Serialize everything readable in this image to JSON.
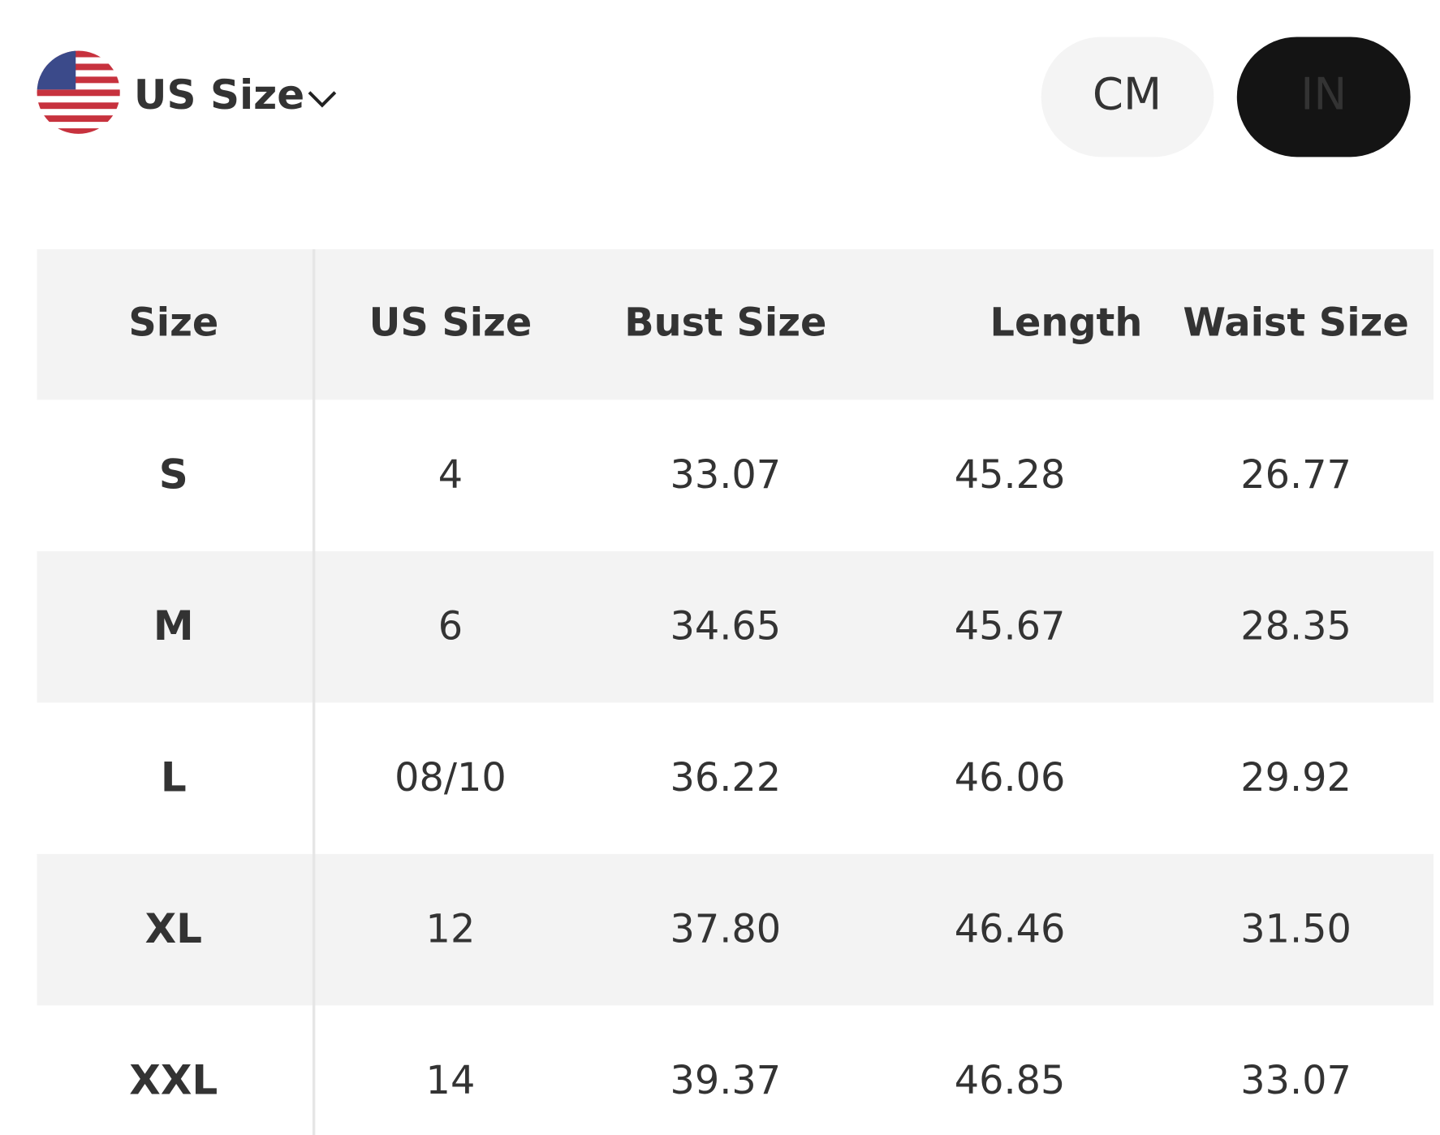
{
  "header": {
    "size_system": "US Size",
    "units": [
      "CM",
      "IN"
    ]
  },
  "table": {
    "columns": [
      "Size",
      "US Size",
      "Bust Size",
      "Length",
      "Waist Size"
    ],
    "rows": [
      [
        "S",
        "4",
        "33.07",
        "45.28",
        "26.77"
      ],
      [
        "M",
        "6",
        "34.65",
        "45.67",
        "28.35"
      ],
      [
        "L",
        "08/10",
        "36.22",
        "46.06",
        "29.92"
      ],
      [
        "XL",
        "12",
        "37.80",
        "46.46",
        "31.50"
      ],
      [
        "XXL",
        "14",
        "39.37",
        "46.85",
        "33.07"
      ]
    ]
  }
}
